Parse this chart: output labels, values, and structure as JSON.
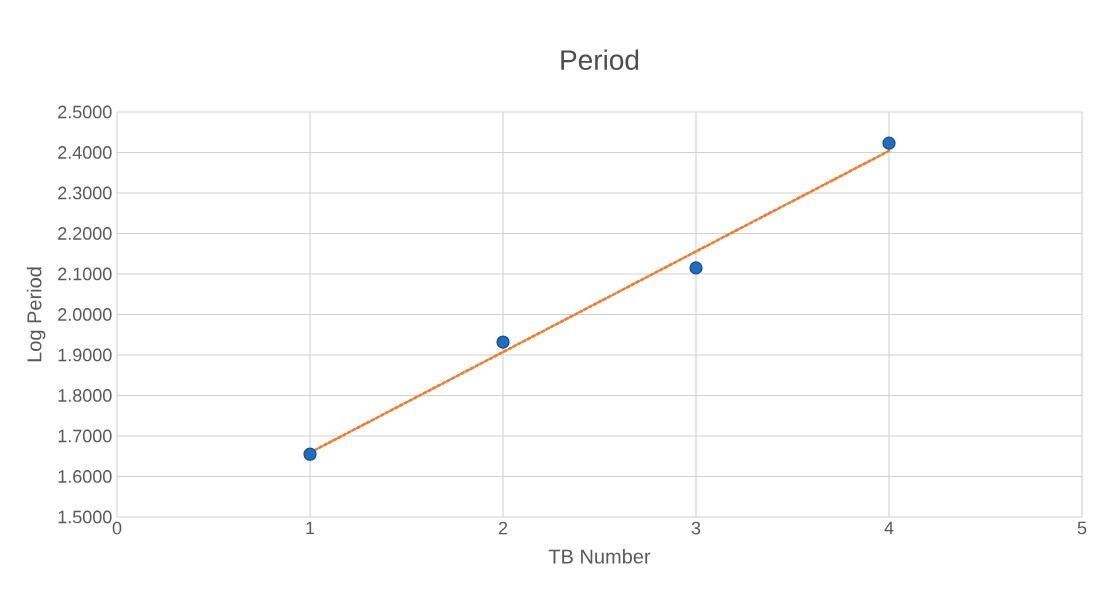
{
  "chart_data": {
    "type": "scatter",
    "title": "Period",
    "xlabel": "TB Number",
    "ylabel": "Log Period",
    "series": [
      {
        "color": "#1f6fc0",
        "x": [
          1,
          2,
          3,
          4
        ],
        "values": [
          1.655,
          1.932,
          2.115,
          2.423
        ],
        "marker": "circle"
      },
      {
        "type": "line",
        "color": "#ed7d31",
        "x": [
          1,
          4
        ],
        "values": [
          1.659,
          2.404
        ],
        "line_style": "dotted",
        "marker": "none"
      }
    ],
    "xlim": [
      0,
      5
    ],
    "xticks": [
      0,
      1,
      2,
      3,
      4,
      5
    ],
    "ylim": [
      1.5,
      2.5
    ],
    "yticks": [
      {
        "value": 1.5,
        "label": "1.5000"
      },
      {
        "value": 1.6,
        "label": "1.6000"
      },
      {
        "value": 1.7,
        "label": "1.7000"
      },
      {
        "value": 1.8,
        "label": "1.8000"
      },
      {
        "value": 1.9,
        "label": "1.9000"
      },
      {
        "value": 2.0,
        "label": "2.0000"
      },
      {
        "value": 2.1,
        "label": "2.1000"
      },
      {
        "value": 2.2,
        "label": "2.2000"
      },
      {
        "value": 2.3,
        "label": "2.3000"
      },
      {
        "value": 2.4,
        "label": "2.4000"
      },
      {
        "value": 2.5,
        "label": "2.5000"
      }
    ],
    "grid": true
  }
}
